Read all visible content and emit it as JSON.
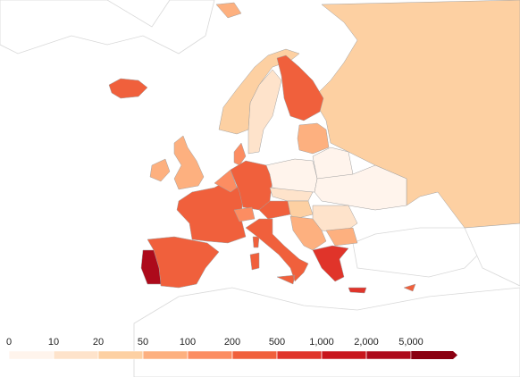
{
  "chart_data": {
    "type": "choropleth",
    "legend": {
      "ticks": [
        0,
        10,
        20,
        50,
        100,
        200,
        500,
        {
          "value": 1000,
          "label": "1,000"
        },
        {
          "value": 2000,
          "label": "2,000"
        },
        {
          "value": 5000,
          "label": "5,000"
        }
      ],
      "colors": [
        "#fff4ec",
        "#fee3cb",
        "#fdd0a2",
        "#fdb07f",
        "#fc8d62",
        "#f0603c",
        "#e0342a",
        "#c8161d",
        "#ad0a1b",
        "#8b0011"
      ]
    },
    "values": [
      30,
      70,
      300,
      15,
      40,
      250,
      150,
      70,
      70,
      300,
      300,
      3000,
      150,
      300,
      150,
      300,
      400,
      5,
      15,
      5,
      8,
      30,
      15,
      60,
      80,
      600,
      300
    ]
  }
}
